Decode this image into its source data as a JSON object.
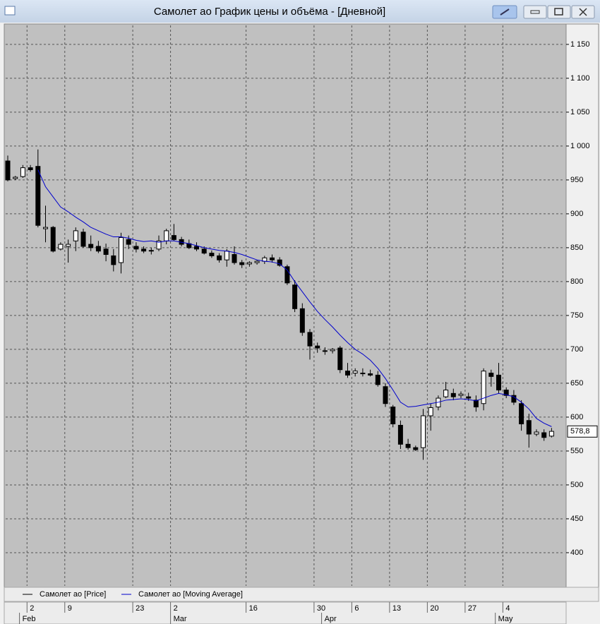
{
  "window": {
    "title": "Самолет ао График цены и объёма - [Дневной]"
  },
  "chart_data": {
    "type": "candlestick",
    "categories": [
      null,
      null,
      null,
      "2",
      null,
      null,
      null,
      null,
      "9",
      null,
      null,
      null,
      null,
      null,
      null,
      null,
      null,
      "23",
      null,
      null,
      null,
      null,
      "2",
      null,
      null,
      null,
      null,
      null,
      null,
      null,
      null,
      null,
      "16",
      null,
      null,
      null,
      null,
      null,
      null,
      null,
      null,
      "30",
      null,
      null,
      null,
      null,
      "6",
      null,
      null,
      null,
      null,
      "13",
      null,
      null,
      null,
      null,
      "20",
      null,
      null,
      null,
      null,
      "27",
      null,
      null,
      null,
      null,
      "4",
      null,
      null,
      null,
      null,
      null,
      null
    ],
    "month_labels": [
      null,
      null,
      "Feb",
      null,
      null,
      null,
      null,
      null,
      null,
      null,
      null,
      null,
      null,
      null,
      null,
      null,
      null,
      null,
      null,
      null,
      null,
      null,
      "Mar",
      null,
      null,
      null,
      null,
      null,
      null,
      null,
      null,
      null,
      null,
      null,
      null,
      null,
      null,
      null,
      null,
      null,
      null,
      null,
      "Apr",
      null,
      null,
      null,
      null,
      null,
      null,
      null,
      null,
      null,
      null,
      null,
      null,
      null,
      null,
      null,
      null,
      null,
      null,
      null,
      null,
      null,
      null,
      "May",
      null,
      null,
      null,
      null,
      null,
      null,
      null
    ],
    "series": [
      {
        "name": "Самолет ао [Price]",
        "color": "#000000",
        "open": [
          978,
          952,
          955,
          968,
          970,
          878,
          880,
          848,
          852,
          860,
          873,
          855,
          852,
          848,
          838,
          828,
          862,
          852,
          848,
          845,
          848,
          860,
          868,
          862,
          856,
          852,
          848,
          842,
          838,
          832,
          840,
          828,
          826,
          828,
          830,
          835,
          832,
          822,
          795,
          760,
          725,
          705,
          698,
          698,
          702,
          668,
          665,
          665,
          664,
          662,
          645,
          615,
          588,
          560,
          555,
          555,
          602,
          615,
          630,
          635,
          632,
          630,
          625,
          620,
          665,
          662,
          640,
          632,
          620,
          595,
          575,
          577,
          572
        ],
        "high": [
          986,
          956,
          972,
          972,
          995,
          912,
          882,
          858,
          862,
          880,
          878,
          868,
          860,
          856,
          848,
          872,
          868,
          858,
          852,
          850,
          868,
          878,
          885,
          866,
          862,
          858,
          852,
          846,
          842,
          848,
          852,
          832,
          830,
          832,
          838,
          840,
          836,
          825,
          802,
          768,
          730,
          710,
          703,
          702,
          705,
          680,
          672,
          672,
          670,
          668,
          650,
          618,
          595,
          568,
          558,
          612,
          620,
          632,
          652,
          642,
          638,
          636,
          632,
          672,
          670,
          680,
          644,
          640,
          625,
          605,
          582,
          582,
          584
        ],
        "low": [
          948,
          950,
          953,
          962,
          880,
          858,
          843,
          846,
          828,
          845,
          850,
          845,
          842,
          830,
          815,
          812,
          848,
          843,
          842,
          840,
          845,
          855,
          860,
          852,
          848,
          845,
          840,
          835,
          828,
          822,
          825,
          820,
          822,
          825,
          826,
          828,
          822,
          795,
          755,
          720,
          685,
          695,
          692,
          694,
          665,
          658,
          660,
          660,
          660,
          645,
          615,
          585,
          553,
          552,
          550,
          537,
          580,
          610,
          628,
          625,
          628,
          624,
          608,
          610,
          645,
          635,
          628,
          618,
          580,
          555,
          572,
          565,
          570
        ],
        "close": [
          950,
          954,
          968,
          965,
          883,
          880,
          845,
          855,
          855,
          875,
          852,
          850,
          845,
          840,
          825,
          865,
          855,
          848,
          845,
          846,
          860,
          875,
          862,
          855,
          850,
          848,
          842,
          838,
          832,
          845,
          828,
          825,
          828,
          830,
          835,
          832,
          824,
          798,
          760,
          725,
          705,
          702,
          698,
          700,
          670,
          662,
          668,
          664,
          662,
          648,
          620,
          590,
          560,
          555,
          552,
          602,
          614,
          628,
          640,
          630,
          634,
          628,
          615,
          668,
          660,
          640,
          632,
          622,
          590,
          575,
          578,
          570,
          579
        ]
      },
      {
        "name": "Самолет ао [Moving Average]",
        "color": "#0000cc",
        "values": [
          null,
          null,
          null,
          null,
          965,
          940,
          925,
          910,
          903,
          895,
          888,
          880,
          875,
          870,
          866,
          866,
          864,
          861,
          859,
          860,
          858,
          860,
          860,
          858,
          856,
          853,
          850,
          848,
          846,
          845,
          843,
          840,
          836,
          832,
          830,
          829,
          826,
          817,
          800,
          785,
          770,
          756,
          744,
          733,
          721,
          710,
          700,
          693,
          684,
          672,
          657,
          640,
          622,
          615,
          616,
          618,
          620,
          622,
          625,
          626,
          627,
          626,
          624,
          628,
          632,
          635,
          633,
          630,
          622,
          612,
          598,
          591,
          586
        ]
      }
    ],
    "ylim": [
      351,
      1178
    ],
    "yticks": [
      {
        "value": 400,
        "label": "400"
      },
      {
        "value": 450,
        "label": "450"
      },
      {
        "value": 500,
        "label": "500"
      },
      {
        "value": 550,
        "label": "550"
      },
      {
        "value": 600,
        "label": "600"
      },
      {
        "value": 650,
        "label": "650"
      },
      {
        "value": 700,
        "label": "700"
      },
      {
        "value": 750,
        "label": "750"
      },
      {
        "value": 800,
        "label": "800"
      },
      {
        "value": 850,
        "label": "850"
      },
      {
        "value": 900,
        "label": "900"
      },
      {
        "value": 950,
        "label": "950"
      },
      {
        "value": 1000,
        "label": "1 000"
      },
      {
        "value": 1050,
        "label": "1 050"
      },
      {
        "value": 1100,
        "label": "1 100"
      },
      {
        "value": 1150,
        "label": "1 150"
      }
    ],
    "grid": true,
    "last_value": {
      "value": 578.8,
      "label": "578,8"
    }
  }
}
